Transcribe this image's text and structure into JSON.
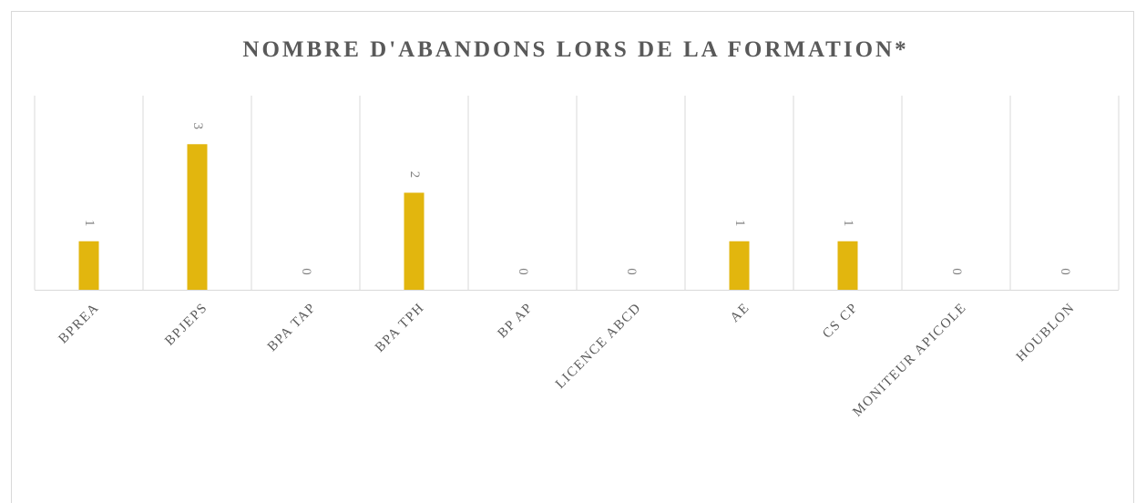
{
  "chart_data": {
    "type": "bar",
    "title": "NOMBRE D'ABANDONS LORS DE LA FORMATION*",
    "categories": [
      "BPREA",
      "BPJEPS",
      "BPA TAP",
      "BPA TPH",
      "BP AP",
      "LICENCE ABCD",
      "AE",
      "CS CP",
      "MONITEUR APICOLE",
      "HOUBLON"
    ],
    "values": [
      1,
      3,
      0,
      2,
      0,
      0,
      1,
      1,
      0,
      0
    ],
    "color": "#e2b60e",
    "ylim": [
      0,
      4
    ]
  }
}
